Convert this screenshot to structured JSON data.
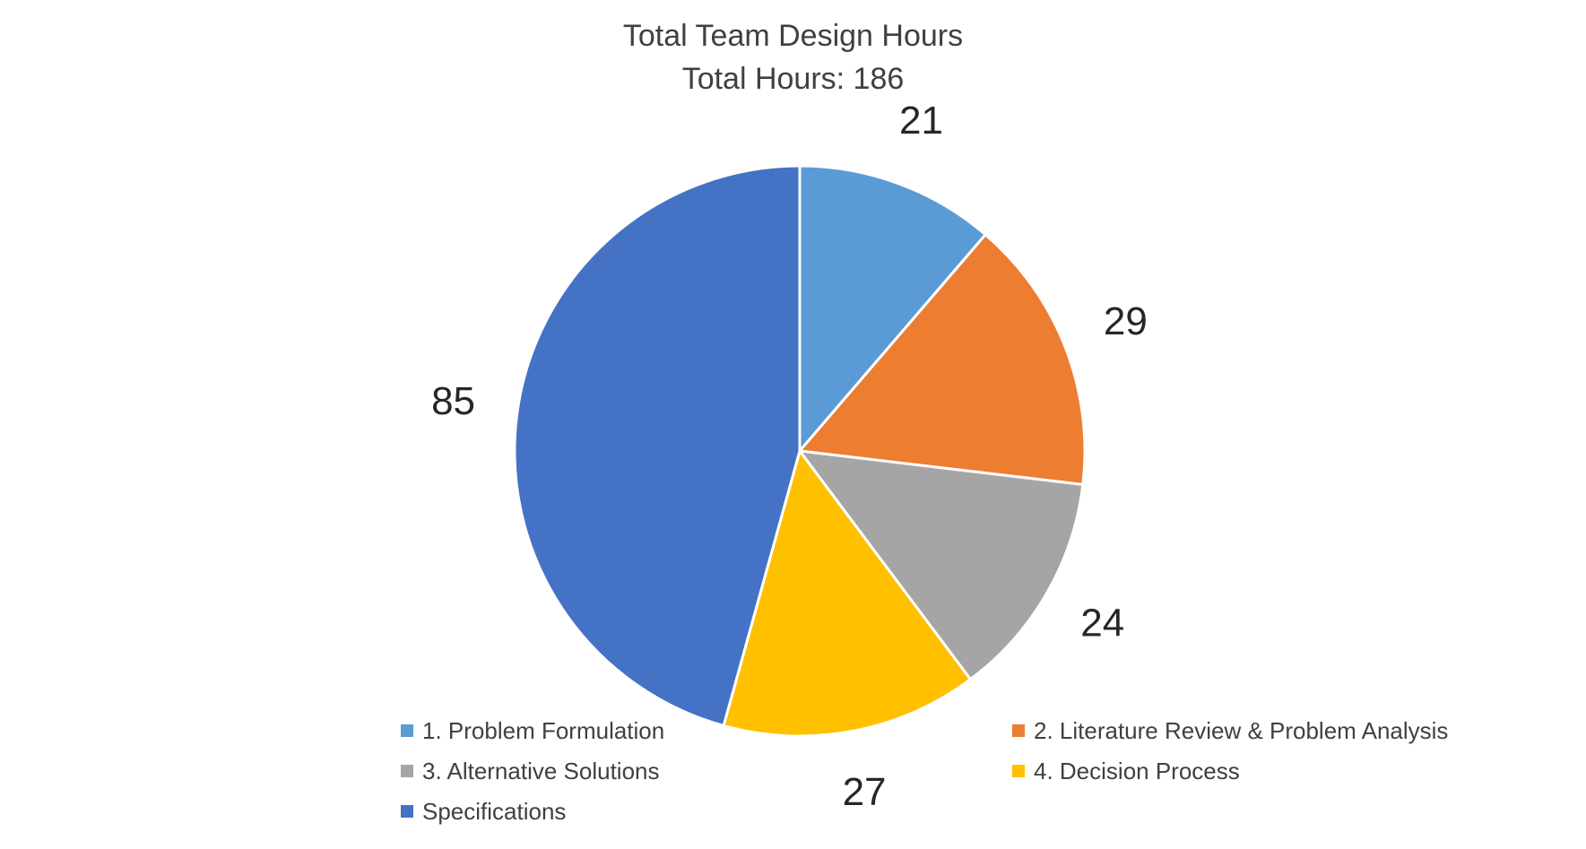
{
  "chart_data": {
    "type": "pie",
    "title": "Total Team Design Hours",
    "subtitle": "Total Hours: 186",
    "categories": [
      "1. Problem Formulation",
      "2. Literature Review & Problem Analysis",
      "3. Alternative Solutions",
      "4. Decision Process",
      "Specifications"
    ],
    "values": [
      21,
      29,
      24,
      27,
      85
    ],
    "colors": [
      "#5B9BD5",
      "#ED7D31",
      "#A5A5A5",
      "#FFC000",
      "#4472C4"
    ],
    "legend_position": "bottom",
    "data_labels": true
  }
}
